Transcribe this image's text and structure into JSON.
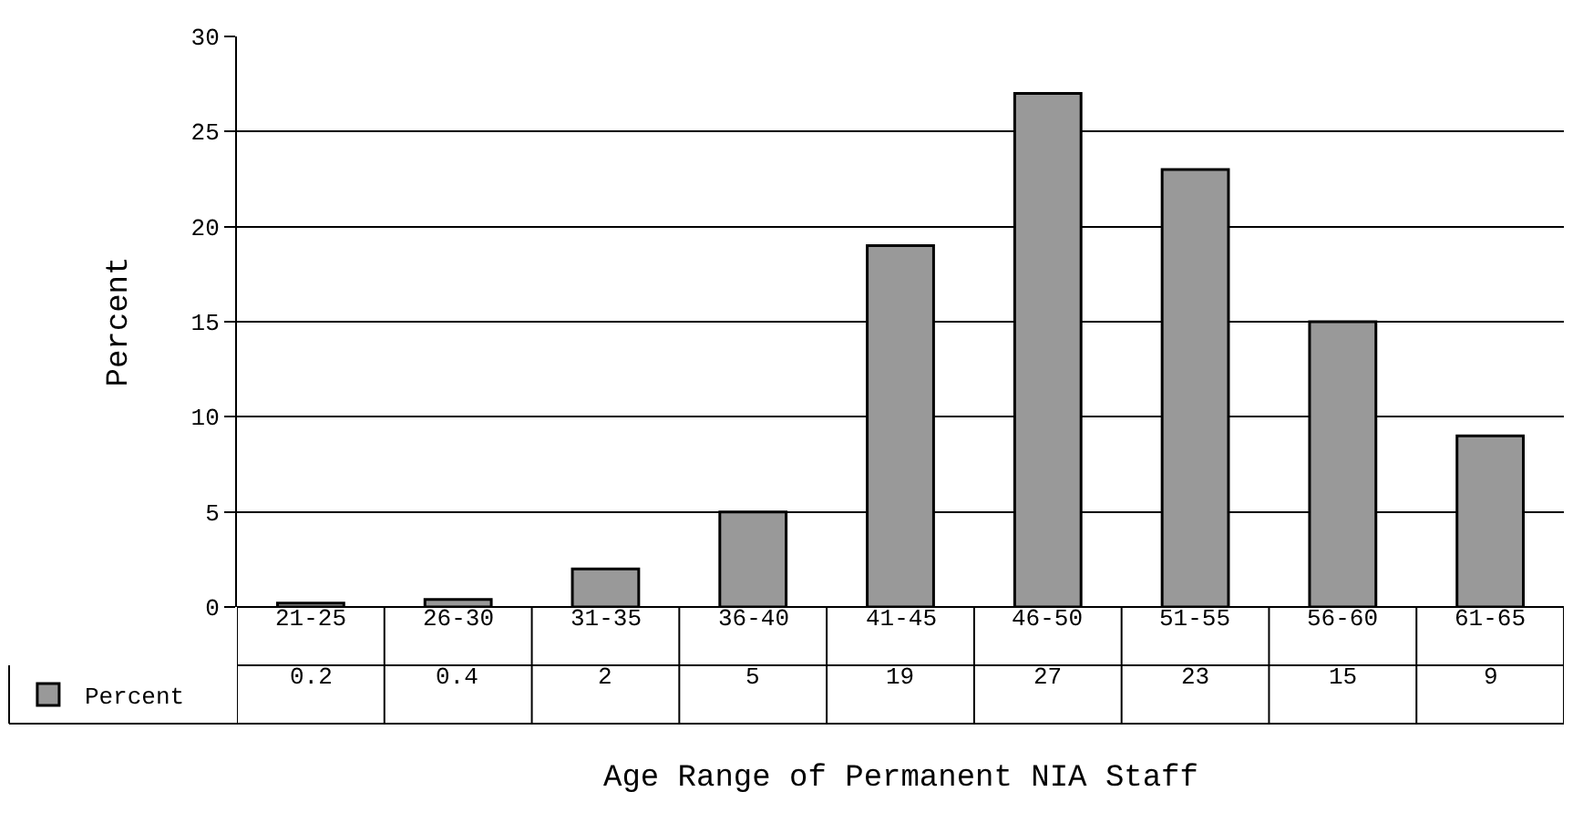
{
  "chart_data": {
    "type": "bar",
    "xlabel": "Age Range of Permanent NIA Staff",
    "ylabel": "Percent",
    "categories": [
      "21-25",
      "26-30",
      "31-35",
      "36-40",
      "41-45",
      "46-50",
      "51-55",
      "56-60",
      "61-65"
    ],
    "series": [
      {
        "name": "Percent",
        "color": "#999999",
        "values": [
          0.2,
          0.4,
          2,
          5,
          19,
          27,
          23,
          15,
          9
        ]
      }
    ],
    "ylim": [
      0,
      30
    ],
    "yticks": [
      0,
      5,
      10,
      15,
      20,
      25,
      30
    ],
    "grid": "y",
    "data_labels": true,
    "legend": "bottom left"
  }
}
